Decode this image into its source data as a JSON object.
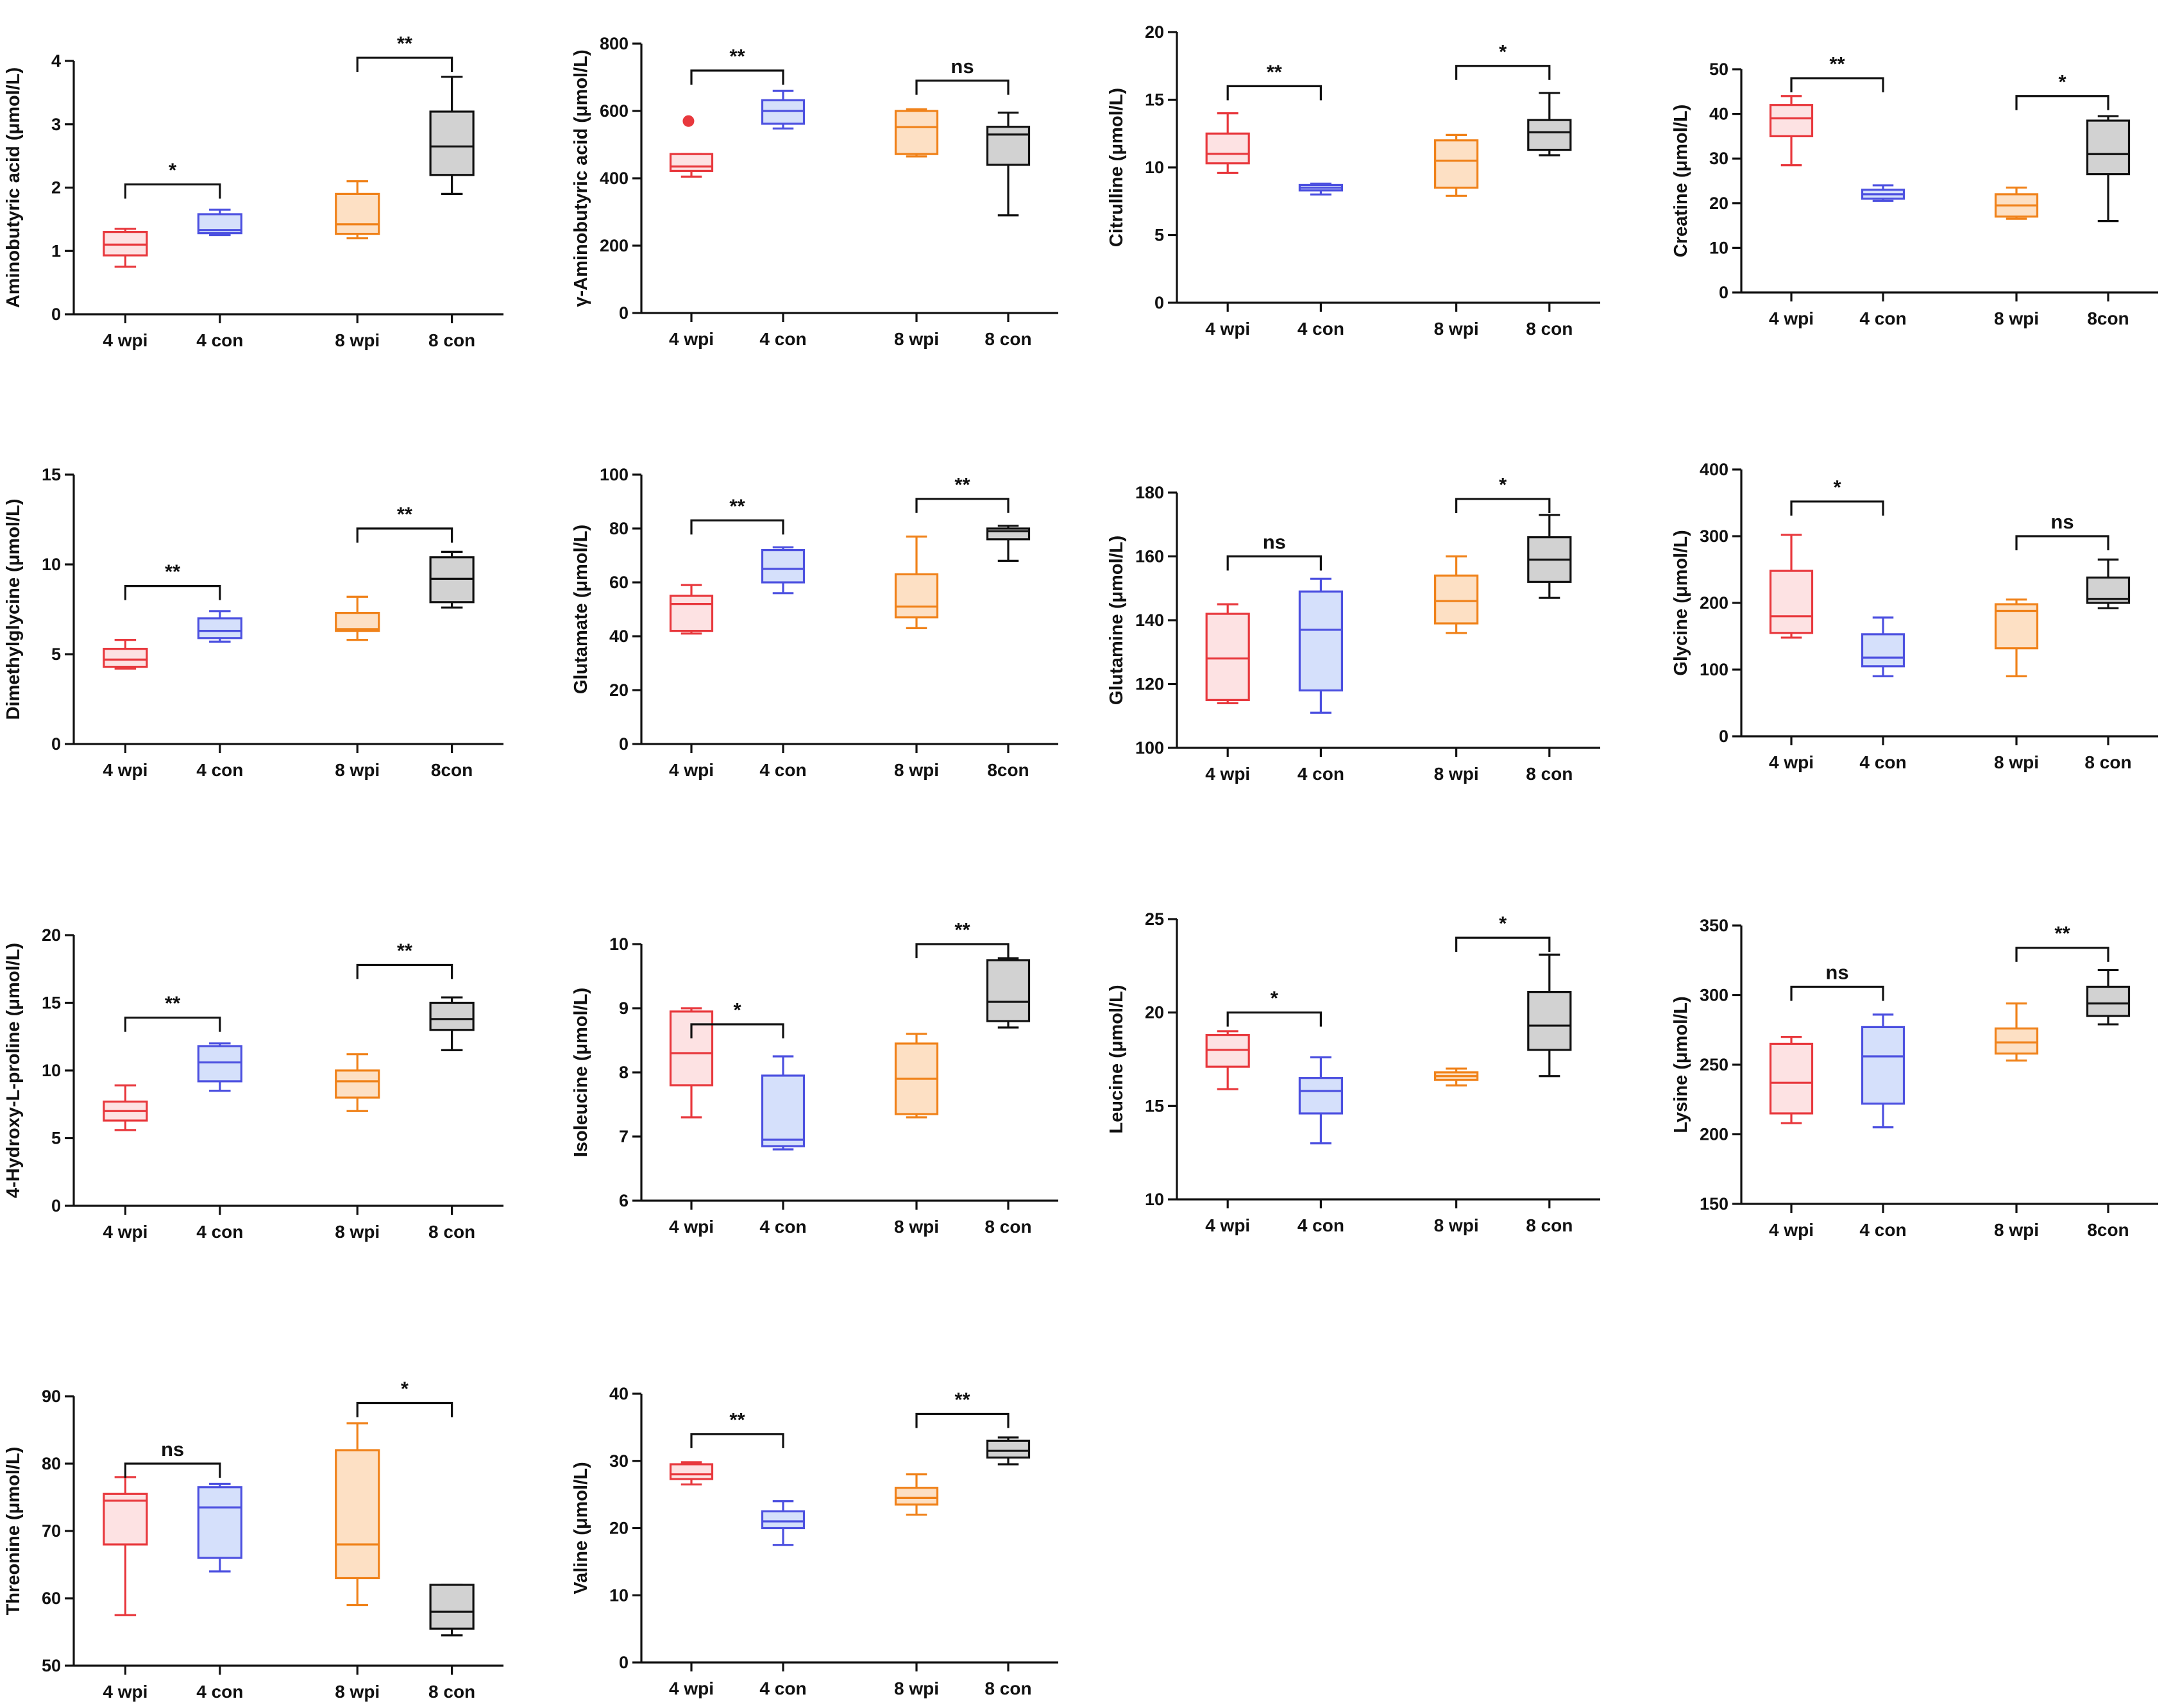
{
  "chart_data": [
    {
      "type": "box",
      "ylabel": "Aminobutyric acid (μmol/L)",
      "ylim": [
        0,
        4
      ],
      "yticks": [
        0,
        1,
        2,
        3,
        4
      ],
      "categories": [
        "4 wpi",
        "4 con",
        "8 wpi",
        "8 con"
      ],
      "boxes": [
        {
          "group": "4 wpi",
          "min": 0.75,
          "q1": 0.93,
          "median": 1.1,
          "q3": 1.3,
          "max": 1.35
        },
        {
          "group": "4 con",
          "min": 1.25,
          "q1": 1.28,
          "median": 1.33,
          "q3": 1.58,
          "max": 1.65
        },
        {
          "group": "8 wpi",
          "min": 1.2,
          "q1": 1.27,
          "median": 1.42,
          "q3": 1.9,
          "max": 2.1
        },
        {
          "group": "8 con",
          "min": 1.9,
          "q1": 2.2,
          "median": 2.65,
          "q3": 3.2,
          "max": 3.75
        }
      ],
      "comparisons": [
        {
          "pair": "4 wpi vs 4 con",
          "label": "*",
          "y": 2.05
        },
        {
          "pair": "8 wpi vs 8 con",
          "label": "**",
          "y": 4.05
        }
      ]
    },
    {
      "type": "box",
      "ylabel": "γ-Aminobutyric acid (μmol/L)",
      "ylim": [
        0,
        800
      ],
      "yticks": [
        0,
        200,
        400,
        600,
        800
      ],
      "categories": [
        "4 wpi",
        "4 con",
        "8 wpi",
        "8 con"
      ],
      "boxes": [
        {
          "group": "4 wpi",
          "min": 405,
          "q1": 422,
          "median": 435,
          "q3": 472,
          "max": 472,
          "outliers": [
            570
          ]
        },
        {
          "group": "4 con",
          "min": 548,
          "q1": 562,
          "median": 600,
          "q3": 632,
          "max": 660
        },
        {
          "group": "8 wpi",
          "min": 465,
          "q1": 472,
          "median": 552,
          "q3": 600,
          "max": 605
        },
        {
          "group": "8 con",
          "min": 290,
          "q1": 440,
          "median": 530,
          "q3": 553,
          "max": 595
        }
      ],
      "comparisons": [
        {
          "pair": "4 wpi vs 4 con",
          "label": "**",
          "y": 720
        },
        {
          "pair": "8 wpi vs 8 con",
          "label": "ns",
          "y": 690
        }
      ]
    },
    {
      "type": "box",
      "ylabel": "Citrulline (μmol/L)",
      "ylim": [
        0,
        20
      ],
      "yticks": [
        0,
        5,
        10,
        15,
        20
      ],
      "categories": [
        "4 wpi",
        "4 con",
        "8 wpi",
        "8 con"
      ],
      "boxes": [
        {
          "group": "4 wpi",
          "min": 9.6,
          "q1": 10.3,
          "median": 11.0,
          "q3": 12.5,
          "max": 14.0
        },
        {
          "group": "4 con",
          "min": 8.0,
          "q1": 8.3,
          "median": 8.5,
          "q3": 8.7,
          "max": 8.8
        },
        {
          "group": "8 wpi",
          "min": 7.9,
          "q1": 8.5,
          "median": 10.5,
          "q3": 12.0,
          "max": 12.4
        },
        {
          "group": "8 con",
          "min": 10.9,
          "q1": 11.3,
          "median": 12.6,
          "q3": 13.5,
          "max": 15.5
        }
      ],
      "comparisons": [
        {
          "pair": "4 wpi vs 4 con",
          "label": "**",
          "y": 16.0
        },
        {
          "pair": "8 wpi vs 8 con",
          "label": "*",
          "y": 17.5
        }
      ]
    },
    {
      "type": "box",
      "ylabel": "Creatine (μmol/L)",
      "ylim": [
        0,
        50
      ],
      "yticks": [
        0,
        10,
        20,
        30,
        40,
        50
      ],
      "categories": [
        "4 wpi",
        "4 con",
        "8 wpi",
        "8con"
      ],
      "boxes": [
        {
          "group": "4 wpi",
          "min": 28.5,
          "q1": 35.0,
          "median": 39.0,
          "q3": 42.0,
          "max": 44.0
        },
        {
          "group": "4 con",
          "min": 20.5,
          "q1": 21.0,
          "median": 22.0,
          "q3": 23.0,
          "max": 24.0
        },
        {
          "group": "8 wpi",
          "min": 16.5,
          "q1": 17.0,
          "median": 19.5,
          "q3": 22.0,
          "max": 23.5
        },
        {
          "group": "8con",
          "min": 16.0,
          "q1": 26.5,
          "median": 31.0,
          "q3": 38.5,
          "max": 39.5
        }
      ],
      "comparisons": [
        {
          "pair": "4 wpi vs 4 con",
          "label": "**",
          "y": 48.0
        },
        {
          "pair": "8 wpi vs 8con",
          "label": "*",
          "y": 44.0
        }
      ]
    },
    {
      "type": "box",
      "ylabel": "Dimethylglycine (μmol/L)",
      "ylim": [
        0,
        15
      ],
      "yticks": [
        0,
        5,
        10,
        15
      ],
      "categories": [
        "4 wpi",
        "4 con",
        "8 wpi",
        "8con"
      ],
      "boxes": [
        {
          "group": "4 wpi",
          "min": 4.2,
          "q1": 4.3,
          "median": 4.7,
          "q3": 5.3,
          "max": 5.8
        },
        {
          "group": "4 con",
          "min": 5.7,
          "q1": 5.9,
          "median": 6.3,
          "q3": 7.0,
          "max": 7.4
        },
        {
          "group": "8 wpi",
          "min": 5.8,
          "q1": 6.3,
          "median": 6.4,
          "q3": 7.3,
          "max": 8.2
        },
        {
          "group": "8con",
          "min": 7.6,
          "q1": 7.9,
          "median": 9.2,
          "q3": 10.4,
          "max": 10.7
        }
      ],
      "comparisons": [
        {
          "pair": "4 wpi vs 4 con",
          "label": "**",
          "y": 8.8
        },
        {
          "pair": "8 wpi vs 8con",
          "label": "**",
          "y": 12.0
        }
      ]
    },
    {
      "type": "box",
      "ylabel": "Glutamate (μmol/L)",
      "ylim": [
        0,
        100
      ],
      "yticks": [
        0,
        20,
        40,
        60,
        80,
        100
      ],
      "categories": [
        "4 wpi",
        "4 con",
        "8 wpi",
        "8con"
      ],
      "boxes": [
        {
          "group": "4 wpi",
          "min": 41,
          "q1": 42,
          "median": 52,
          "q3": 55,
          "max": 59
        },
        {
          "group": "4 con",
          "min": 56,
          "q1": 60,
          "median": 65,
          "q3": 72,
          "max": 73
        },
        {
          "group": "8 wpi",
          "min": 43,
          "q1": 47,
          "median": 51,
          "q3": 63,
          "max": 77
        },
        {
          "group": "8con",
          "min": 68,
          "q1": 76,
          "median": 79,
          "q3": 80,
          "max": 81
        }
      ],
      "comparisons": [
        {
          "pair": "4 wpi vs 4 con",
          "label": "**",
          "y": 83
        },
        {
          "pair": "8 wpi vs 8con",
          "label": "**",
          "y": 91
        }
      ]
    },
    {
      "type": "box",
      "ylabel": "Glutamine (μmol/L)",
      "ylim": [
        100,
        180
      ],
      "yticks": [
        100,
        120,
        140,
        160,
        180
      ],
      "categories": [
        "4 wpi",
        "4 con",
        "8 wpi",
        "8 con"
      ],
      "boxes": [
        {
          "group": "4 wpi",
          "min": 114,
          "q1": 115,
          "median": 128,
          "q3": 142,
          "max": 145
        },
        {
          "group": "4 con",
          "min": 111,
          "q1": 118,
          "median": 137,
          "q3": 149,
          "max": 153
        },
        {
          "group": "8 wpi",
          "min": 136,
          "q1": 139,
          "median": 146,
          "q3": 154,
          "max": 160
        },
        {
          "group": "8 con",
          "min": 147,
          "q1": 152,
          "median": 159,
          "q3": 166,
          "max": 173
        }
      ],
      "comparisons": [
        {
          "pair": "4 wpi vs 4 con",
          "label": "ns",
          "y": 160
        },
        {
          "pair": "8 wpi vs 8 con",
          "label": "*",
          "y": 178
        }
      ]
    },
    {
      "type": "box",
      "ylabel": "Glycine (μmol/L)",
      "ylim": [
        0,
        400
      ],
      "yticks": [
        0,
        100,
        200,
        300,
        400
      ],
      "categories": [
        "4 wpi",
        "4 con",
        "8 wpi",
        "8 con"
      ],
      "boxes": [
        {
          "group": "4 wpi",
          "min": 148,
          "q1": 155,
          "median": 180,
          "q3": 248,
          "max": 302
        },
        {
          "group": "4 con",
          "min": 90,
          "q1": 105,
          "median": 118,
          "q3": 153,
          "max": 178
        },
        {
          "group": "8 wpi",
          "min": 90,
          "q1": 132,
          "median": 188,
          "q3": 198,
          "max": 205
        },
        {
          "group": "8 con",
          "min": 192,
          "q1": 200,
          "median": 206,
          "q3": 238,
          "max": 265
        }
      ],
      "comparisons": [
        {
          "pair": "4 wpi vs 4 con",
          "label": "*",
          "y": 352
        },
        {
          "pair": "8 wpi vs 8 con",
          "label": "ns",
          "y": 300
        }
      ]
    },
    {
      "type": "box",
      "ylabel": "4-Hydroxy-L-proline (μmol/L)",
      "ylim": [
        0,
        20
      ],
      "yticks": [
        0,
        5,
        10,
        15,
        20
      ],
      "categories": [
        "4 wpi",
        "4 con",
        "8 wpi",
        "8 con"
      ],
      "boxes": [
        {
          "group": "4 wpi",
          "min": 5.6,
          "q1": 6.3,
          "median": 7.0,
          "q3": 7.7,
          "max": 8.9
        },
        {
          "group": "4 con",
          "min": 8.5,
          "q1": 9.2,
          "median": 10.6,
          "q3": 11.8,
          "max": 12.0
        },
        {
          "group": "8 wpi",
          "min": 7.0,
          "q1": 8.0,
          "median": 9.2,
          "q3": 10.0,
          "max": 11.2
        },
        {
          "group": "8 con",
          "min": 11.5,
          "q1": 13.0,
          "median": 13.8,
          "q3": 15.0,
          "max": 15.4
        }
      ],
      "comparisons": [
        {
          "pair": "4 wpi vs 4 con",
          "label": "**",
          "y": 13.9
        },
        {
          "pair": "8 wpi vs 8 con",
          "label": "**",
          "y": 17.8
        }
      ]
    },
    {
      "type": "box",
      "ylabel": "Isoleucine (μmol/L)",
      "ylim": [
        6,
        10
      ],
      "yticks": [
        6,
        7,
        8,
        9,
        10
      ],
      "categories": [
        "4 wpi",
        "4 con",
        "8 wpi",
        "8 con"
      ],
      "boxes": [
        {
          "group": "4 wpi",
          "min": 7.3,
          "q1": 7.8,
          "median": 8.3,
          "q3": 8.95,
          "max": 9.0
        },
        {
          "group": "4 con",
          "min": 6.8,
          "q1": 6.85,
          "median": 6.95,
          "q3": 7.95,
          "max": 8.25
        },
        {
          "group": "8 wpi",
          "min": 7.3,
          "q1": 7.35,
          "median": 7.9,
          "q3": 8.45,
          "max": 8.6
        },
        {
          "group": "8 con",
          "min": 8.7,
          "q1": 8.8,
          "median": 9.1,
          "q3": 9.75,
          "max": 9.78
        }
      ],
      "comparisons": [
        {
          "pair": "4 wpi vs 4 con",
          "label": "*",
          "y": 8.75
        },
        {
          "pair": "8 wpi vs 8 con",
          "label": "**",
          "y": 10.0
        }
      ]
    },
    {
      "type": "box",
      "ylabel": "Leucine (μmol/L)",
      "ylim": [
        10,
        25
      ],
      "yticks": [
        10,
        15,
        20,
        25
      ],
      "categories": [
        "4 wpi",
        "4 con",
        "8 wpi",
        "8 con"
      ],
      "boxes": [
        {
          "group": "4 wpi",
          "min": 15.9,
          "q1": 17.1,
          "median": 18.0,
          "q3": 18.8,
          "max": 19.0
        },
        {
          "group": "4 con",
          "min": 13.0,
          "q1": 14.6,
          "median": 15.8,
          "q3": 16.5,
          "max": 17.6
        },
        {
          "group": "8 wpi",
          "min": 16.1,
          "q1": 16.4,
          "median": 16.6,
          "q3": 16.8,
          "max": 17.0
        },
        {
          "group": "8 con",
          "min": 16.6,
          "q1": 18.0,
          "median": 19.3,
          "q3": 21.1,
          "max": 23.1
        }
      ],
      "comparisons": [
        {
          "pair": "4 wpi vs 4 con",
          "label": "*",
          "y": 20.0
        },
        {
          "pair": "8 wpi vs 8 con",
          "label": "*",
          "y": 24.0
        }
      ]
    },
    {
      "type": "box",
      "ylabel": "Lysine (μmol/L)",
      "ylim": [
        150,
        350
      ],
      "yticks": [
        150,
        200,
        250,
        300,
        350
      ],
      "categories": [
        "4 wpi",
        "4 con",
        "8 wpi",
        "8con"
      ],
      "boxes": [
        {
          "group": "4 wpi",
          "min": 208,
          "q1": 215,
          "median": 237,
          "q3": 265,
          "max": 270
        },
        {
          "group": "4 con",
          "min": 205,
          "q1": 222,
          "median": 256,
          "q3": 277,
          "max": 286
        },
        {
          "group": "8 wpi",
          "min": 253,
          "q1": 258,
          "median": 266,
          "q3": 276,
          "max": 294
        },
        {
          "group": "8con",
          "min": 279,
          "q1": 285,
          "median": 294,
          "q3": 306,
          "max": 318
        }
      ],
      "comparisons": [
        {
          "pair": "4 wpi vs 4 con",
          "label": "ns",
          "y": 306
        },
        {
          "pair": "8 wpi vs 8con",
          "label": "**",
          "y": 334
        }
      ]
    },
    {
      "type": "box",
      "ylabel": "Threonine (μmol/L)",
      "ylim": [
        50,
        90
      ],
      "yticks": [
        50,
        60,
        70,
        80,
        90
      ],
      "categories": [
        "4 wpi",
        "4 con",
        "8 wpi",
        "8 con"
      ],
      "boxes": [
        {
          "group": "4 wpi",
          "min": 57.5,
          "q1": 68.0,
          "median": 74.5,
          "q3": 75.5,
          "max": 78.0
        },
        {
          "group": "4 con",
          "min": 64.0,
          "q1": 66.0,
          "median": 73.5,
          "q3": 76.5,
          "max": 77.0
        },
        {
          "group": "8 wpi",
          "min": 59.0,
          "q1": 63.0,
          "median": 68.0,
          "q3": 82.0,
          "max": 86.0
        },
        {
          "group": "8 con",
          "min": 54.5,
          "q1": 55.5,
          "median": 58.0,
          "q3": 62.0,
          "max": 62.0
        }
      ],
      "comparisons": [
        {
          "pair": "4 wpi vs 4 con",
          "label": "ns",
          "y": 80.0
        },
        {
          "pair": "8 wpi vs 8 con",
          "label": "*",
          "y": 89.0
        }
      ]
    },
    {
      "type": "box",
      "ylabel": "Valine (μmol/L)",
      "ylim": [
        0,
        40
      ],
      "yticks": [
        0,
        10,
        20,
        30,
        40
      ],
      "categories": [
        "4 wpi",
        "4 con",
        "8 wpi",
        "8 con"
      ],
      "boxes": [
        {
          "group": "4 wpi",
          "min": 26.5,
          "q1": 27.3,
          "median": 28.0,
          "q3": 29.5,
          "max": 29.8
        },
        {
          "group": "4 con",
          "min": 17.5,
          "q1": 20.0,
          "median": 21.0,
          "q3": 22.5,
          "max": 24.0
        },
        {
          "group": "8 wpi",
          "min": 22.0,
          "q1": 23.5,
          "median": 24.5,
          "q3": 26.0,
          "max": 28.0
        },
        {
          "group": "8 con",
          "min": 29.5,
          "q1": 30.5,
          "median": 31.5,
          "q3": 33.0,
          "max": 33.5
        }
      ],
      "comparisons": [
        {
          "pair": "4 wpi vs 4 con",
          "label": "**",
          "y": 34.0
        },
        {
          "pair": "8 wpi vs 8 con",
          "label": "**",
          "y": 37.0
        }
      ]
    }
  ],
  "group_colors": {
    "stroke": [
      "#e8383d",
      "#4c50e0",
      "#f0821a",
      "#111111"
    ],
    "fill": [
      "#fde2e3",
      "#d5e0fb",
      "#fde0c4",
      "#d2d2d2"
    ]
  }
}
